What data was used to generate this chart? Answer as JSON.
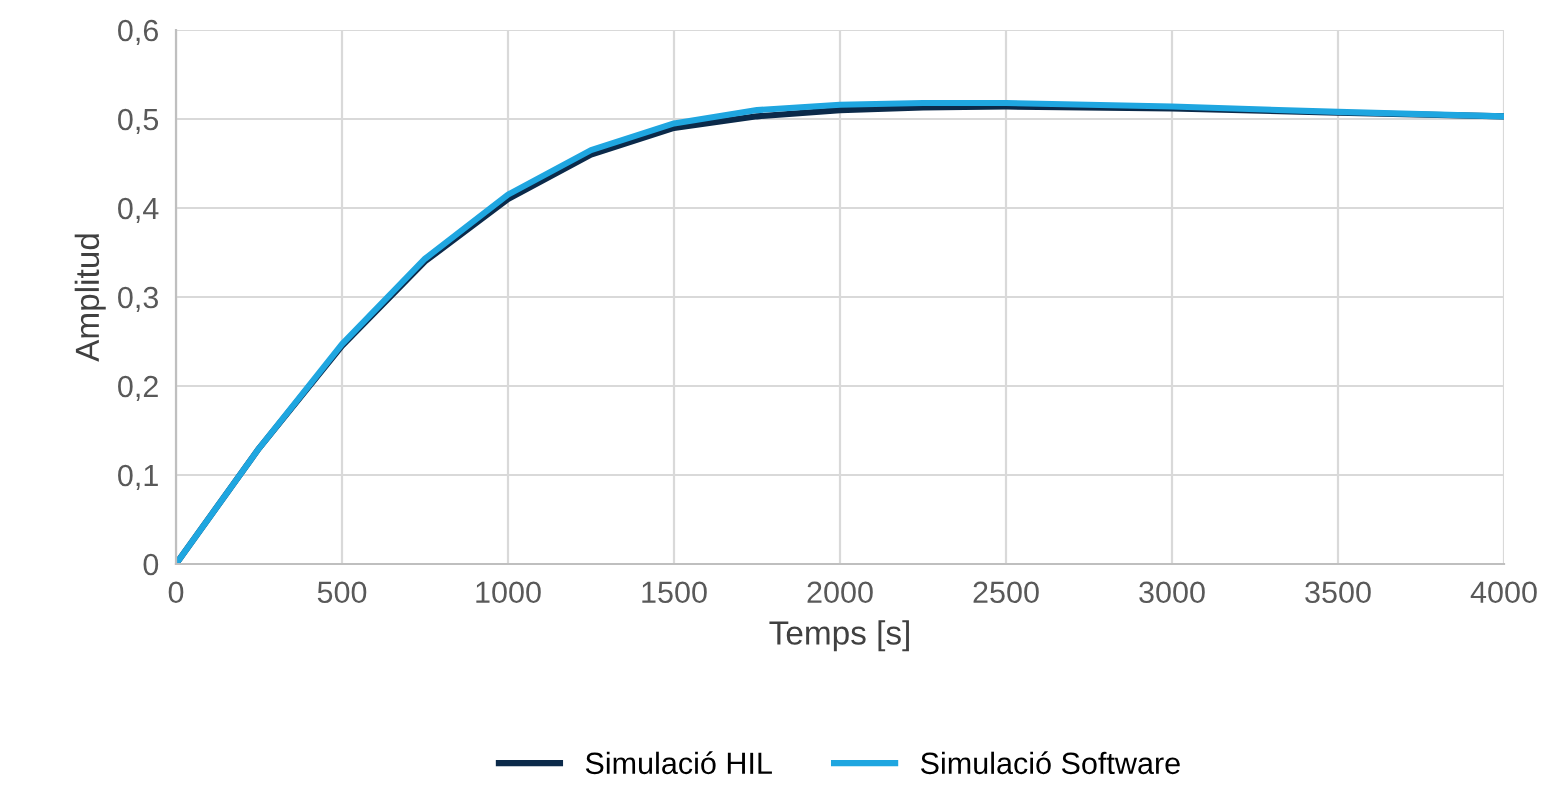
{
  "chart_data": {
    "type": "line",
    "xlabel": "Temps [s]",
    "ylabel": "Amplitud",
    "xlim": [
      0,
      4000
    ],
    "xticks": [
      0,
      500,
      1000,
      1500,
      2000,
      2500,
      3000,
      3500,
      4000
    ],
    "ylim": [
      0,
      0.6
    ],
    "yticks": [
      0,
      {
        "value": 0.1,
        "label": "0,1"
      },
      {
        "value": 0.2,
        "label": "0,2"
      },
      {
        "value": 0.3,
        "label": "0,3"
      },
      {
        "value": 0.4,
        "label": "0,4"
      },
      {
        "value": 0.5,
        "label": "0,5"
      },
      {
        "value": 0.6,
        "label": "0,6"
      }
    ],
    "grid": true,
    "legend": "bottom",
    "marker": "none",
    "line_style": "solid",
    "series": [
      {
        "name": "Simulació HIL",
        "color": "#0b2a4a",
        "x": [
          0,
          250,
          500,
          750,
          1000,
          1250,
          1500,
          1750,
          2000,
          2250,
          2500,
          3000,
          3500,
          4000
        ],
        "values": [
          0,
          0.13,
          0.245,
          0.34,
          0.41,
          0.46,
          0.49,
          0.503,
          0.51,
          0.513,
          0.514,
          0.512,
          0.507,
          0.503
        ]
      },
      {
        "name": "Simulació Software",
        "color": "#1fa6e0",
        "x": [
          0,
          250,
          500,
          750,
          1000,
          1250,
          1500,
          1750,
          2000,
          2250,
          2500,
          3000,
          3500,
          4000
        ],
        "values": [
          0,
          0.13,
          0.247,
          0.343,
          0.415,
          0.465,
          0.495,
          0.51,
          0.516,
          0.518,
          0.518,
          0.514,
          0.508,
          0.503
        ]
      }
    ]
  }
}
